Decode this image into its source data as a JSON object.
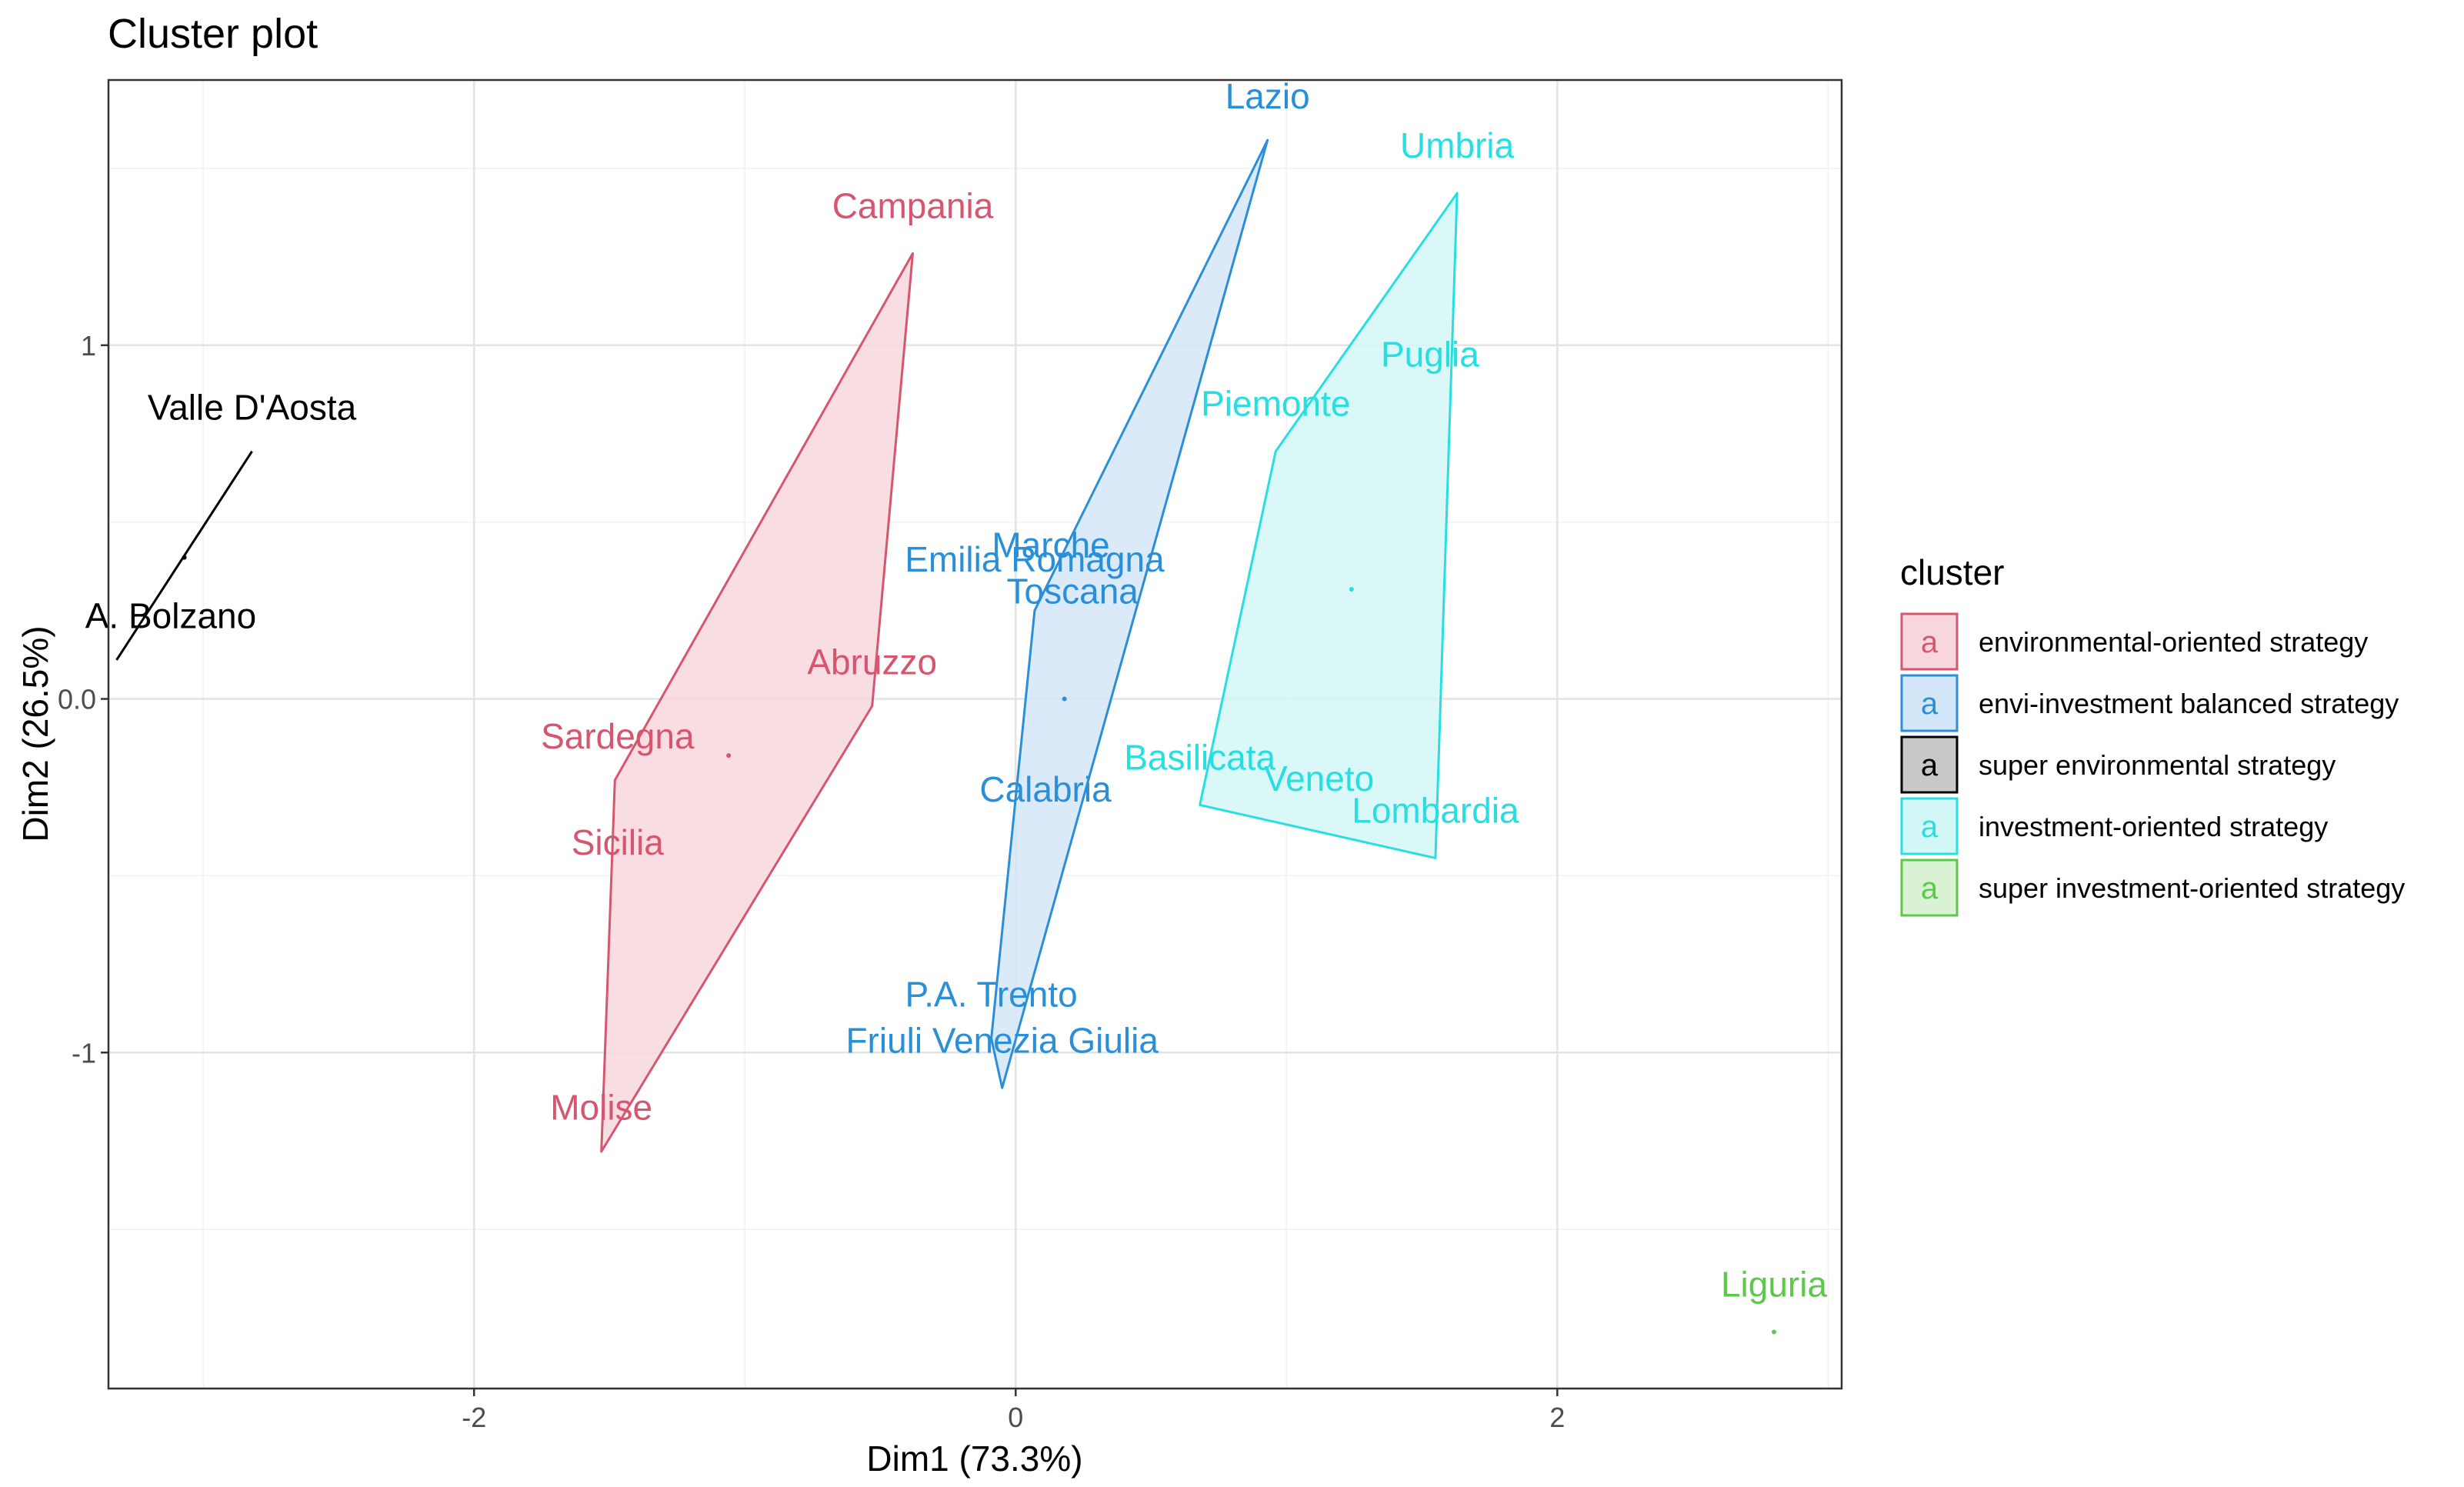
{
  "chart_data": {
    "type": "scatter",
    "title": "Cluster plot",
    "xlabel": "Dim1 (73.3%)",
    "ylabel": "Dim2 (26.5%)",
    "xlim": [
      -3.35,
      3.05
    ],
    "ylim": [
      -1.95,
      1.75
    ],
    "x_ticks": [
      -2,
      0,
      2
    ],
    "x_tick_labels": [
      "-2",
      "0",
      "2"
    ],
    "y_ticks": [
      -1,
      0,
      1
    ],
    "y_tick_labels": [
      "-1",
      "0.0",
      "1"
    ],
    "x_minor": [
      -3,
      -1,
      1,
      3
    ],
    "y_minor": [
      -1.5,
      -0.5,
      0.5,
      1.5
    ],
    "grid": true,
    "legend": {
      "title": "cluster",
      "position": "right",
      "key_glyph": "a"
    },
    "series": [
      {
        "name": "environmental-oriented strategy",
        "color": "#D6566F",
        "fill": "#F7D7DD",
        "hull": [
          [
            -0.38,
            1.26
          ],
          [
            -0.53,
            -0.02
          ],
          [
            -1.53,
            -1.28
          ],
          [
            -1.48,
            -0.23
          ]
        ],
        "center": [
          -1.06,
          -0.16
        ],
        "points": [
          {
            "label": "Campania",
            "x": -0.38,
            "y": 1.36
          },
          {
            "label": "Abruzzo",
            "x": -0.53,
            "y": 0.07
          },
          {
            "label": "Sardegna",
            "x": -1.47,
            "y": -0.14
          },
          {
            "label": "Sicilia",
            "x": -1.47,
            "y": -0.44
          },
          {
            "label": "Molise",
            "x": -1.53,
            "y": -1.19
          }
        ]
      },
      {
        "name": "envi-investment balanced strategy",
        "color": "#2B8FD8",
        "fill": "#D3E6F7",
        "hull": [
          [
            0.93,
            1.58
          ],
          [
            0.07,
            0.25
          ],
          [
            -0.09,
            -0.96
          ],
          [
            -0.05,
            -1.1
          ]
        ],
        "center": [
          0.18,
          0.0
        ],
        "points": [
          {
            "label": "Lazio",
            "x": 0.93,
            "y": 1.67
          },
          {
            "label": "Marche",
            "x": 0.13,
            "y": 0.4
          },
          {
            "label": "Emilia Romagna",
            "x": 0.07,
            "y": 0.36
          },
          {
            "label": "Toscana",
            "x": 0.21,
            "y": 0.27
          },
          {
            "label": "Calabria",
            "x": 0.11,
            "y": -0.29
          },
          {
            "label": "P.A. Trento",
            "x": -0.09,
            "y": -0.87
          },
          {
            "label": "Friuli Venezia Giulia",
            "x": -0.05,
            "y": -1.0
          }
        ]
      },
      {
        "name": "super environmental strategy",
        "color": "#000000",
        "fill": "#C8C8C8",
        "hull": [
          [
            -2.82,
            0.7
          ],
          [
            -3.32,
            0.11
          ]
        ],
        "center": [
          -3.07,
          0.4
        ],
        "points": [
          {
            "label": "Valle D'Aosta",
            "x": -2.82,
            "y": 0.79
          },
          {
            "label": "A. Bolzano",
            "x": -3.12,
            "y": 0.2
          }
        ]
      },
      {
        "name": "investment-oriented strategy",
        "color": "#28DEE0",
        "fill": "#D3F7F7",
        "hull": [
          [
            1.63,
            1.43
          ],
          [
            1.55,
            -0.45
          ],
          [
            0.68,
            -0.3
          ],
          [
            0.96,
            0.7
          ]
        ],
        "center": [
          1.24,
          0.31
        ],
        "points": [
          {
            "label": "Umbria",
            "x": 1.63,
            "y": 1.53
          },
          {
            "label": "Puglia",
            "x": 1.53,
            "y": 0.94
          },
          {
            "label": "Piemonte",
            "x": 0.96,
            "y": 0.8
          },
          {
            "label": "Basilicata",
            "x": 0.68,
            "y": -0.2
          },
          {
            "label": "Veneto",
            "x": 1.12,
            "y": -0.26
          },
          {
            "label": "Lombardia",
            "x": 1.55,
            "y": -0.35
          }
        ]
      },
      {
        "name": "super investment-oriented strategy",
        "color": "#5CC94A",
        "fill": "#D9F2D3",
        "hull": [],
        "center": [
          2.8,
          -1.79
        ],
        "points": [
          {
            "label": "Liguria",
            "x": 2.8,
            "y": -1.69
          }
        ]
      }
    ]
  }
}
